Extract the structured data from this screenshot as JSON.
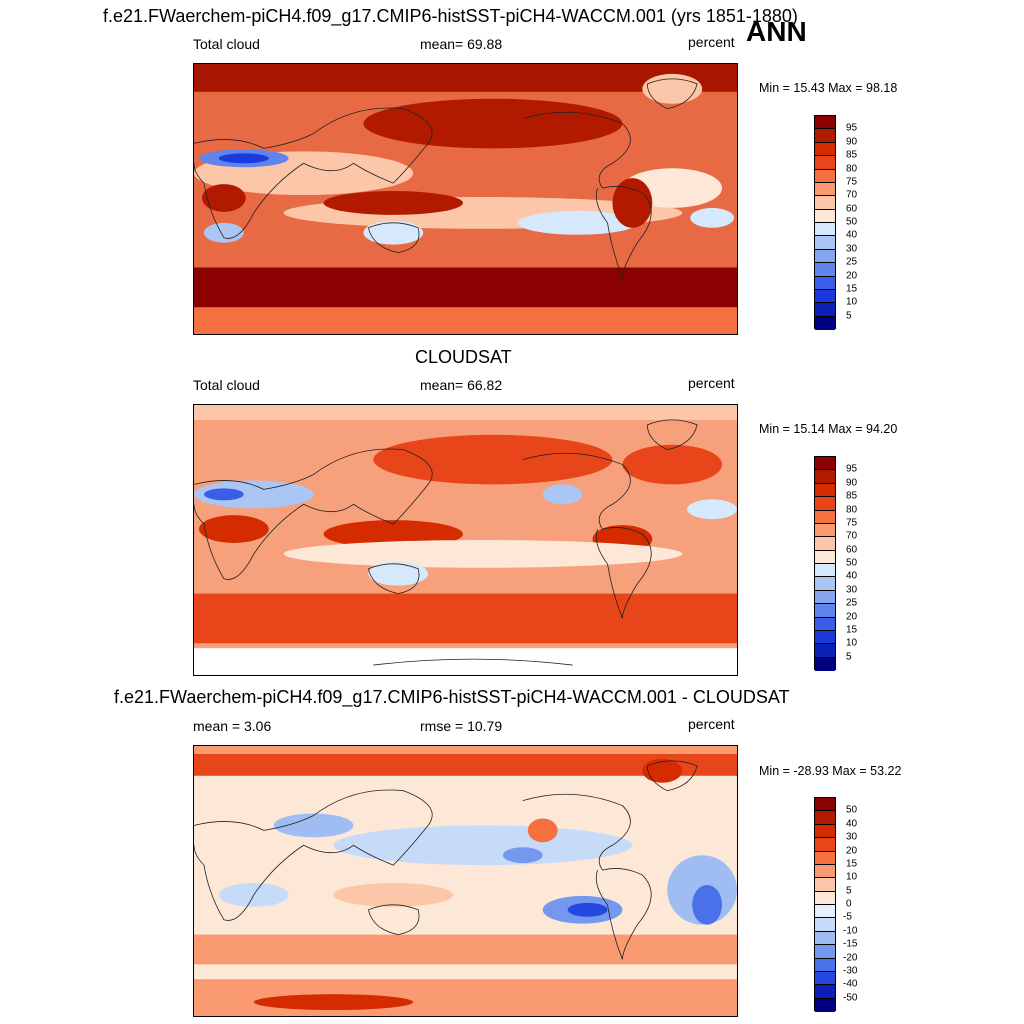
{
  "figure": {
    "title": "f.e21.FWaerchem-piCH4.f09_g17.CMIP6-histSST-piCH4-WACCM.001 (yrs 1851-1880)",
    "season": "ANN"
  },
  "panels": [
    {
      "left_label": "Total cloud",
      "center_label": "mean=  69.88",
      "right_label": "percent",
      "minmax": "Min =  15.43 Max =  98.18",
      "colorbar": {
        "labels": [
          "95",
          "90",
          "85",
          "80",
          "75",
          "70",
          "60",
          "50",
          "40",
          "30",
          "25",
          "20",
          "15",
          "10",
          "5"
        ],
        "colors": [
          "#8b0000",
          "#b21a00",
          "#d42b00",
          "#e8461a",
          "#f4713f",
          "#fa9a70",
          "#fcc6a8",
          "#fde8d8",
          "#d6e8fb",
          "#aac6f5",
          "#85a6ef",
          "#5f84eb",
          "#3a5ee8",
          "#1b3adb",
          "#0c20b8",
          "#000080"
        ]
      }
    },
    {
      "title": "CLOUDSAT",
      "left_label": "Total cloud",
      "center_label": "mean=  66.82",
      "right_label": "percent",
      "minmax": "Min =  15.14 Max =  94.20",
      "colorbar": {
        "labels": [
          "95",
          "90",
          "85",
          "80",
          "75",
          "70",
          "60",
          "50",
          "40",
          "30",
          "25",
          "20",
          "15",
          "10",
          "5"
        ],
        "colors": [
          "#8b0000",
          "#b21a00",
          "#d42b00",
          "#e8461a",
          "#f4713f",
          "#fa9a70",
          "#fcc6a8",
          "#fde8d8",
          "#d6e8fb",
          "#aac6f5",
          "#85a6ef",
          "#5f84eb",
          "#3a5ee8",
          "#1b3adb",
          "#0c20b8",
          "#000080"
        ]
      }
    },
    {
      "title": "f.e21.FWaerchem-piCH4.f09_g17.CMIP6-histSST-piCH4-WACCM.001 - CLOUDSAT",
      "left_label": "mean =   3.06",
      "center_label": "rmse =  10.79",
      "right_label": "percent",
      "minmax": "Min = -28.93 Max =  53.22",
      "colorbar": {
        "labels": [
          "50",
          "40",
          "30",
          "20",
          "15",
          "10",
          "5",
          "0",
          "-5",
          "-10",
          "-15",
          "-20",
          "-30",
          "-40",
          "-50"
        ],
        "colors": [
          "#8b0000",
          "#b21a00",
          "#d42b00",
          "#e8461a",
          "#f4713f",
          "#fa9a70",
          "#fcc6a8",
          "#fde8d8",
          "#e6f0fc",
          "#c6dbf8",
          "#9fbdf2",
          "#7498ee",
          "#4a70ea",
          "#2447e0",
          "#0c20b8",
          "#000080"
        ]
      }
    }
  ],
  "colors": {
    "panel1_base": "#e86a45",
    "panel2_base": "#f7a07c",
    "panel3_base": "#fde8d8",
    "coast": "#222222"
  }
}
